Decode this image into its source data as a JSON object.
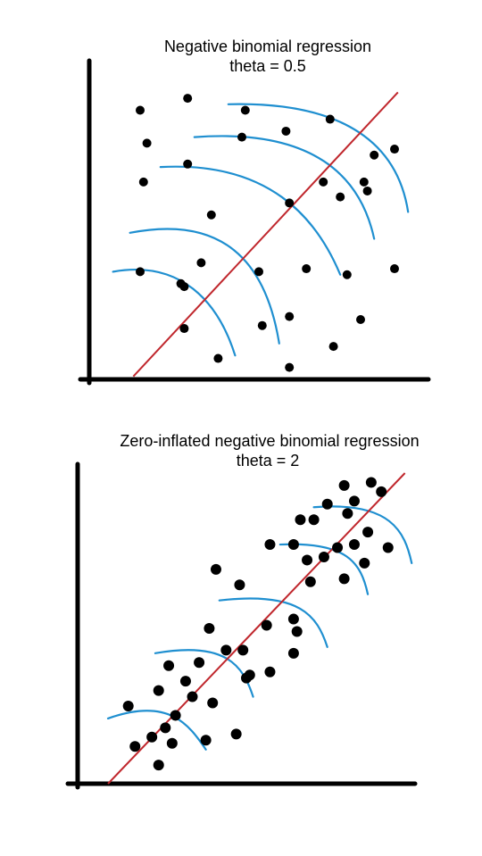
{
  "chart_data": [
    {
      "type": "scatter",
      "title_line1": "Negative binomial regression",
      "title_line2": "theta = 0.5",
      "xlim": [
        0,
        10
      ],
      "ylim": [
        0,
        10
      ],
      "colors": {
        "points": "#000000",
        "regression": "#c0272d",
        "distributions": "#1f8fd0",
        "axes": "#000000"
      },
      "regression": {
        "x": [
          1.3,
          9.1
        ],
        "y": [
          0.1,
          9.6
        ]
      },
      "distribution_curves": [
        {
          "x": [
            0.7,
            2.7,
            3.8,
            4.3
          ],
          "y": [
            3.6,
            4.0,
            2.6,
            0.8
          ]
        },
        {
          "x": [
            1.2,
            3.9,
            5.2,
            5.6
          ],
          "y": [
            4.9,
            5.5,
            4.0,
            1.2
          ]
        },
        {
          "x": [
            2.1,
            5.3,
            6.7,
            7.4
          ],
          "y": [
            7.1,
            7.3,
            5.4,
            3.5
          ]
        },
        {
          "x": [
            3.1,
            6.6,
            8.0,
            8.4
          ],
          "y": [
            8.1,
            8.4,
            6.8,
            4.7
          ]
        },
        {
          "x": [
            4.1,
            7.6,
            9.1,
            9.4
          ],
          "y": [
            9.2,
            9.3,
            7.8,
            5.6
          ]
        }
      ],
      "points": {
        "x": [
          1.5,
          2.9,
          1.7,
          4.6,
          5.8,
          8.4,
          7.1,
          1.6,
          2.9,
          4.5,
          6.9,
          9.0,
          2.8,
          3.6,
          5.9,
          7.4,
          8.1,
          8.2,
          3.3,
          1.5,
          2.7,
          5.0,
          6.4,
          7.6,
          2.8,
          5.9,
          3.8,
          5.1,
          8.0,
          7.2,
          5.9,
          9.0
        ],
        "y": [
          9.0,
          9.4,
          7.9,
          9.0,
          8.3,
          7.5,
          8.7,
          6.6,
          7.2,
          8.1,
          6.6,
          7.7,
          3.1,
          5.5,
          5.9,
          6.1,
          6.6,
          6.3,
          3.9,
          3.6,
          3.2,
          3.6,
          3.7,
          3.5,
          1.7,
          2.1,
          0.7,
          1.8,
          2.0,
          1.1,
          0.4,
          3.7
        ]
      }
    },
    {
      "type": "scatter",
      "title_line1": "Zero-inflated negative binomial regression",
      "title_line2": "theta = 2",
      "xlim": [
        0,
        10
      ],
      "ylim": [
        0,
        10
      ],
      "colors": {
        "points": "#000000",
        "regression": "#c0272d",
        "distributions": "#1f8fd0",
        "axes": "#000000"
      },
      "regression": {
        "x": [
          0.9,
          9.7
        ],
        "y": [
          0.0,
          10.0
        ]
      },
      "distribution_curves": [
        {
          "x": [
            0.9,
            2.7,
            3.3,
            3.8
          ],
          "y": [
            2.1,
            2.8,
            1.9,
            1.1
          ]
        },
        {
          "x": [
            2.3,
            4.4,
            4.9,
            5.2
          ],
          "y": [
            4.2,
            4.6,
            3.8,
            2.8
          ]
        },
        {
          "x": [
            4.2,
            6.6,
            7.1,
            7.4
          ],
          "y": [
            5.9,
            6.2,
            5.4,
            4.4
          ]
        },
        {
          "x": [
            6.0,
            8.0,
            8.4,
            8.6
          ],
          "y": [
            7.7,
            7.8,
            7.1,
            6.1
          ]
        },
        {
          "x": [
            7.0,
            9.3,
            9.7,
            9.9
          ],
          "y": [
            8.9,
            9.1,
            8.1,
            7.1
          ]
        }
      ],
      "points": {
        "x": [
          7.9,
          8.7,
          8.2,
          9.0,
          7.4,
          6.6,
          7.0,
          8.0,
          8.6,
          9.2,
          5.7,
          6.4,
          6.8,
          7.3,
          7.7,
          8.2,
          8.5,
          7.9,
          4.1,
          6.9,
          4.8,
          6.4,
          5.6,
          6.5,
          3.9,
          4.4,
          4.9,
          6.4,
          2.7,
          3.6,
          5.0,
          3.2,
          2.4,
          5.7,
          5.1,
          4.0,
          3.4,
          1.5,
          2.9,
          2.6,
          4.7,
          3.8,
          1.7,
          2.2,
          2.8,
          2.4
        ],
        "y": [
          9.6,
          9.7,
          9.1,
          9.4,
          9.0,
          8.5,
          8.5,
          8.7,
          8.1,
          7.6,
          7.7,
          7.7,
          7.2,
          7.3,
          7.6,
          7.7,
          7.1,
          6.6,
          6.9,
          6.5,
          6.4,
          5.3,
          5.1,
          4.9,
          5.0,
          4.3,
          4.3,
          4.2,
          3.8,
          3.9,
          3.4,
          3.3,
          3.0,
          3.6,
          3.5,
          2.6,
          2.8,
          2.5,
          2.2,
          1.8,
          1.6,
          1.4,
          1.2,
          1.5,
          1.3,
          0.6
        ]
      }
    }
  ]
}
